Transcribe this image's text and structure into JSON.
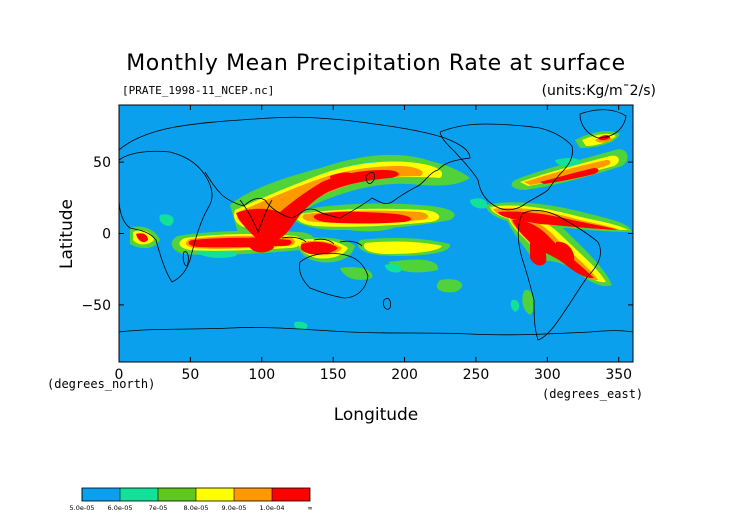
{
  "title": "Monthly Mean Precipitation Rate at surface",
  "file_label": "[PRATE_1998-11_NCEP.nc]",
  "units_label": "(units:Kg/m¯2/s)",
  "x_axis": {
    "label": "Longitude",
    "sub_label": "(degrees_east)",
    "ticks": [
      "0",
      "50",
      "100",
      "150",
      "200",
      "250",
      "300",
      "350"
    ],
    "range": [
      0,
      360
    ]
  },
  "y_axis": {
    "label": "Latitude",
    "sub_label": "(degrees_north)",
    "ticks": [
      "50",
      "0",
      "−50"
    ],
    "range": [
      -90,
      90
    ]
  },
  "colorbar": {
    "labels": [
      "5.0e-05",
      "6.0e-05",
      "7e-05",
      "8.0e-05",
      "9.0e-05",
      "1.0e-04",
      "∞"
    ],
    "colors": [
      "#0ba0ee",
      "#11e29a",
      "#5ec81c",
      "#ffff00",
      "#ff9900",
      "#ff0000"
    ]
  },
  "colors": {
    "background_field": "#0ba0ee",
    "coast": "#000000"
  }
}
